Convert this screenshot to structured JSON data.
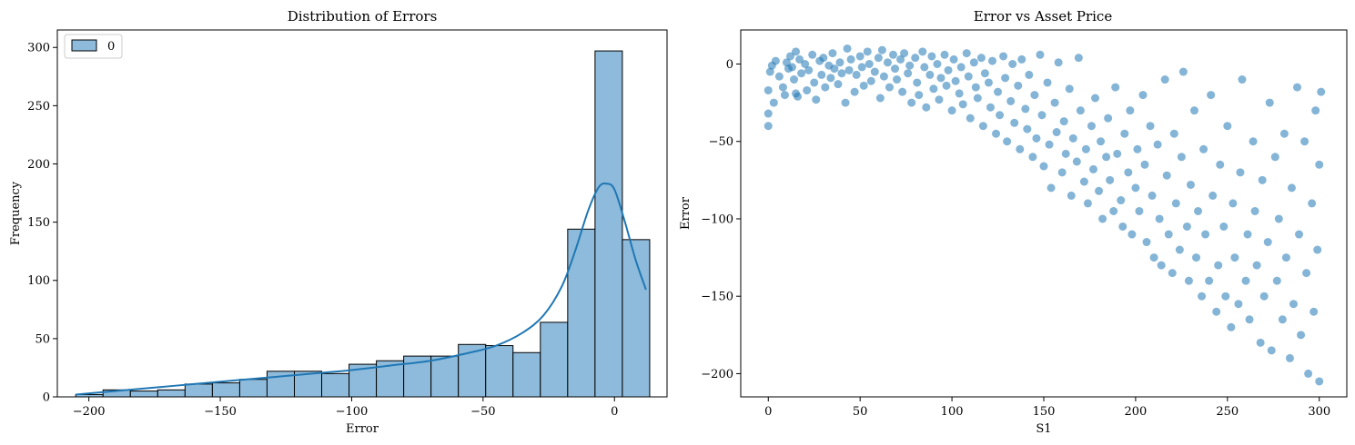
{
  "chart_data": [
    {
      "type": "bar",
      "title": "Distribution of Errors",
      "xlabel": "Error",
      "ylabel": "Frequency",
      "xlim": [
        -212,
        20
      ],
      "ylim": [
        0,
        315
      ],
      "xticks": [
        -200,
        -150,
        -100,
        -50,
        0
      ],
      "xtick_labels": [
        "−200",
        "−150",
        "−100",
        "−50",
        "0"
      ],
      "yticks": [
        0,
        50,
        100,
        150,
        200,
        250,
        300
      ],
      "yticks_labels": [
        "0",
        "50",
        "100",
        "150",
        "200",
        "250",
        "300"
      ],
      "legend": {
        "placement": "top-left",
        "entries": [
          "0"
        ]
      },
      "bin_edges": [
        -205.0,
        -194.6,
        -184.2,
        -173.8,
        -163.4,
        -153.0,
        -142.6,
        -132.2,
        -121.8,
        -111.4,
        -101.0,
        -90.6,
        -80.2,
        -69.8,
        -59.4,
        -49.0,
        -38.6,
        -28.2,
        -17.8,
        -7.4,
        3.0,
        13.4
      ],
      "counts": [
        2,
        6,
        5,
        6,
        11,
        12,
        15,
        22,
        22,
        20,
        28,
        31,
        35,
        35,
        45,
        44,
        38,
        64,
        144,
        297,
        135
      ],
      "kde": {
        "x": [
          -205,
          -190,
          -175,
          -160,
          -145,
          -130,
          -115,
          -100,
          -85,
          -70,
          -55,
          -45,
          -35,
          -27,
          -20,
          -15,
          -10,
          -6,
          -3,
          0,
          4,
          8,
          12
        ],
        "y": [
          2,
          5,
          8,
          11,
          14,
          17,
          20,
          23,
          27,
          31,
          38,
          44,
          55,
          70,
          95,
          125,
          160,
          180,
          183,
          178,
          150,
          118,
          92
        ]
      },
      "colors": {
        "bar_fill": "#8ebbdb",
        "bar_edge": "#000000",
        "kde": "#1f77b4"
      }
    },
    {
      "type": "scatter",
      "title": "Error vs Asset Price",
      "xlabel": "S1",
      "ylabel": "Error",
      "xlim": [
        -15,
        315
      ],
      "ylim": [
        -215,
        22
      ],
      "xticks": [
        0,
        50,
        100,
        150,
        200,
        250,
        300
      ],
      "xtick_labels": [
        "0",
        "50",
        "100",
        "150",
        "200",
        "250",
        "300"
      ],
      "yticks": [
        -200,
        -150,
        -100,
        -50,
        0
      ],
      "ytick_labels": [
        "−200",
        "−150",
        "−100",
        "−50",
        "0"
      ],
      "colors": {
        "point": "#1f77b4"
      },
      "point_opacity": 0.55,
      "points": [
        [
          0,
          -40
        ],
        [
          0,
          -32
        ],
        [
          0,
          -17
        ],
        [
          1,
          -5
        ],
        [
          2,
          -1
        ],
        [
          3,
          -25
        ],
        [
          4,
          2
        ],
        [
          6,
          -8
        ],
        [
          8,
          -15
        ],
        [
          9,
          -20
        ],
        [
          10,
          1
        ],
        [
          11,
          -3
        ],
        [
          12,
          5
        ],
        [
          13,
          -2
        ],
        [
          14,
          -10
        ],
        [
          15,
          8
        ],
        [
          15,
          -19
        ],
        [
          16,
          -21
        ],
        [
          17,
          3
        ],
        [
          18,
          -6
        ],
        [
          20,
          0
        ],
        [
          21,
          -17
        ],
        [
          22,
          -4
        ],
        [
          24,
          6
        ],
        [
          25,
          -12
        ],
        [
          26,
          -23
        ],
        [
          28,
          2
        ],
        [
          29,
          -7
        ],
        [
          30,
          4
        ],
        [
          31,
          -15
        ],
        [
          33,
          -1
        ],
        [
          34,
          -9
        ],
        [
          35,
          7
        ],
        [
          36,
          -3
        ],
        [
          38,
          -13
        ],
        [
          39,
          1
        ],
        [
          40,
          -6
        ],
        [
          42,
          -25
        ],
        [
          43,
          10
        ],
        [
          44,
          -4
        ],
        [
          45,
          3
        ],
        [
          47,
          -18
        ],
        [
          48,
          -7
        ],
        [
          50,
          5
        ],
        [
          51,
          -2
        ],
        [
          52,
          -14
        ],
        [
          54,
          8
        ],
        [
          55,
          0
        ],
        [
          56,
          -11
        ],
        [
          58,
          -5
        ],
        [
          60,
          4
        ],
        [
          61,
          -22
        ],
        [
          62,
          9
        ],
        [
          63,
          -8
        ],
        [
          65,
          1
        ],
        [
          66,
          -15
        ],
        [
          68,
          6
        ],
        [
          69,
          -3
        ],
        [
          70,
          -10
        ],
        [
          72,
          3
        ],
        [
          73,
          -18
        ],
        [
          74,
          7
        ],
        [
          76,
          -6
        ],
        [
          77,
          -1
        ],
        [
          78,
          -25
        ],
        [
          80,
          4
        ],
        [
          81,
          -12
        ],
        [
          82,
          -20
        ],
        [
          84,
          8
        ],
        [
          85,
          -2
        ],
        [
          86,
          -28
        ],
        [
          88,
          -7
        ],
        [
          89,
          5
        ],
        [
          90,
          -16
        ],
        [
          92,
          0
        ],
        [
          93,
          -23
        ],
        [
          94,
          -9
        ],
        [
          96,
          6
        ],
        [
          97,
          -14
        ],
        [
          98,
          -4
        ],
        [
          100,
          -30
        ],
        [
          101,
          3
        ],
        [
          102,
          -11
        ],
        [
          104,
          -19
        ],
        [
          105,
          -2
        ],
        [
          106,
          -26
        ],
        [
          108,
          7
        ],
        [
          109,
          -8
        ],
        [
          110,
          -35
        ],
        [
          112,
          1
        ],
        [
          113,
          -15
        ],
        [
          114,
          -22
        ],
        [
          116,
          4
        ],
        [
          117,
          -40
        ],
        [
          118,
          -6
        ],
        [
          120,
          -12
        ],
        [
          121,
          -28
        ],
        [
          122,
          2
        ],
        [
          124,
          -45
        ],
        [
          125,
          -18
        ],
        [
          126,
          -33
        ],
        [
          128,
          5
        ],
        [
          129,
          -9
        ],
        [
          130,
          -50
        ],
        [
          132,
          -24
        ],
        [
          133,
          0
        ],
        [
          134,
          -38
        ],
        [
          136,
          -14
        ],
        [
          137,
          -55
        ],
        [
          138,
          3
        ],
        [
          140,
          -29
        ],
        [
          141,
          -42
        ],
        [
          142,
          -7
        ],
        [
          144,
          -60
        ],
        [
          145,
          -20
        ],
        [
          146,
          -48
        ],
        [
          148,
          6
        ],
        [
          149,
          -33
        ],
        [
          150,
          -66
        ],
        [
          152,
          -12
        ],
        [
          153,
          -52
        ],
        [
          154,
          -80
        ],
        [
          156,
          -25
        ],
        [
          157,
          -44
        ],
        [
          158,
          1
        ],
        [
          160,
          -70
        ],
        [
          161,
          -37
        ],
        [
          162,
          -58
        ],
        [
          164,
          -16
        ],
        [
          165,
          -85
        ],
        [
          166,
          -48
        ],
        [
          168,
          -63
        ],
        [
          169,
          4
        ],
        [
          170,
          -30
        ],
        [
          172,
          -76
        ],
        [
          173,
          -55
        ],
        [
          174,
          -90
        ],
        [
          176,
          -40
        ],
        [
          177,
          -68
        ],
        [
          178,
          -22
        ],
        [
          180,
          -82
        ],
        [
          181,
          -50
        ],
        [
          182,
          -100
        ],
        [
          184,
          -60
        ],
        [
          185,
          -35
        ],
        [
          186,
          -75
        ],
        [
          188,
          -95
        ],
        [
          189,
          -15
        ],
        [
          190,
          -58
        ],
        [
          192,
          -88
        ],
        [
          193,
          -105
        ],
        [
          194,
          -45
        ],
        [
          196,
          -70
        ],
        [
          197,
          -30
        ],
        [
          198,
          -110
        ],
        [
          200,
          -80
        ],
        [
          201,
          -55
        ],
        [
          202,
          -95
        ],
        [
          204,
          -20
        ],
        [
          205,
          -65
        ],
        [
          206,
          -115
        ],
        [
          208,
          -40
        ],
        [
          209,
          -85
        ],
        [
          210,
          -125
        ],
        [
          212,
          -52
        ],
        [
          213,
          -100
        ],
        [
          214,
          -130
        ],
        [
          216,
          -10
        ],
        [
          217,
          -72
        ],
        [
          218,
          -110
        ],
        [
          220,
          -135
        ],
        [
          221,
          -45
        ],
        [
          222,
          -90
        ],
        [
          224,
          -120
        ],
        [
          225,
          -60
        ],
        [
          226,
          -5
        ],
        [
          228,
          -105
        ],
        [
          229,
          -140
        ],
        [
          230,
          -78
        ],
        [
          232,
          -30
        ],
        [
          233,
          -125
        ],
        [
          234,
          -95
        ],
        [
          236,
          -150
        ],
        [
          237,
          -55
        ],
        [
          238,
          -110
        ],
        [
          240,
          -140
        ],
        [
          241,
          -20
        ],
        [
          242,
          -85
        ],
        [
          244,
          -160
        ],
        [
          245,
          -130
        ],
        [
          246,
          -65
        ],
        [
          248,
          -105
        ],
        [
          249,
          -150
        ],
        [
          250,
          -40
        ],
        [
          252,
          -170
        ],
        [
          253,
          -90
        ],
        [
          254,
          -125
        ],
        [
          256,
          -155
        ],
        [
          257,
          -70
        ],
        [
          258,
          -10
        ],
        [
          260,
          -140
        ],
        [
          261,
          -110
        ],
        [
          262,
          -165
        ],
        [
          264,
          -50
        ],
        [
          265,
          -95
        ],
        [
          266,
          -130
        ],
        [
          268,
          -180
        ],
        [
          269,
          -75
        ],
        [
          270,
          -150
        ],
        [
          272,
          -115
        ],
        [
          273,
          -25
        ],
        [
          274,
          -185
        ],
        [
          276,
          -60
        ],
        [
          277,
          -140
        ],
        [
          278,
          -100
        ],
        [
          280,
          -165
        ],
        [
          281,
          -45
        ],
        [
          282,
          -125
        ],
        [
          284,
          -190
        ],
        [
          285,
          -80
        ],
        [
          286,
          -155
        ],
        [
          288,
          -15
        ],
        [
          289,
          -110
        ],
        [
          290,
          -175
        ],
        [
          292,
          -50
        ],
        [
          293,
          -135
        ],
        [
          294,
          -200
        ],
        [
          296,
          -90
        ],
        [
          297,
          -160
        ],
        [
          298,
          -30
        ],
        [
          299,
          -120
        ],
        [
          300,
          -205
        ],
        [
          300,
          -65
        ],
        [
          301,
          -18
        ]
      ]
    }
  ]
}
